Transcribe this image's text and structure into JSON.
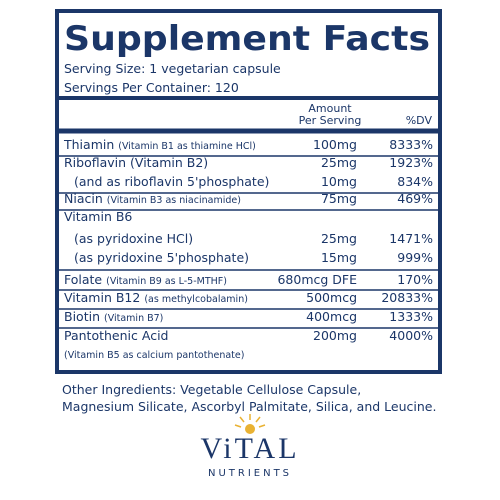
{
  "header": {
    "title": "Supplement Facts",
    "serving_size": "Serving Size: 1 vegetarian capsule",
    "servings_per_container": "Servings Per Container: 120"
  },
  "table": {
    "columns": {
      "amount": "Amount Per Serving",
      "dv": "%DV"
    },
    "rows": [
      {
        "name": "Thiamin",
        "note": "(Vitamin B1 as thiamine HCl)",
        "amount": "100mg",
        "dv": "8333%"
      },
      {
        "name": "Riboflavin (Vitamin B2)",
        "amount": "25mg",
        "dv": "1923%"
      },
      {
        "name": "(and as riboflavin 5'phosphate)",
        "amount": "10mg",
        "dv": "834%"
      },
      {
        "name": "Niacin",
        "note": "(Vitamin B3 as niacinamide)",
        "amount": "75mg",
        "dv": "469%"
      },
      {
        "name": "Vitamin B6"
      },
      {
        "name": "(as pyridoxine HCl)",
        "amount": "25mg",
        "dv": "1471%"
      },
      {
        "name": "(as pyridoxine 5'phosphate)",
        "amount": "15mg",
        "dv": "999%"
      },
      {
        "name": "Folate",
        "note": "(Vitamin B9 as L-5-MTHF)",
        "amount": "680mcg DFE",
        "dv": "170%"
      },
      {
        "name": "Vitamin B12",
        "note": "(as methylcobalamin)",
        "amount": "500mcg",
        "dv": "20833%"
      },
      {
        "name": "Biotin",
        "note": "(Vitamin B7)",
        "amount": "400mcg",
        "dv": "1333%"
      },
      {
        "name": "Pantothenic Acid",
        "amount": "200mg",
        "dv": "4000%"
      },
      {
        "name": "(Vitamin B5 as calcium pantothenate)"
      }
    ]
  },
  "other_ingredients": [
    "Other Ingredients: Vegetable Cellulose Capsule,",
    "Magnesium Silicate, Ascorbyl Palmitate, Silica, and Leucine."
  ],
  "logo": {
    "brand": "ViTAL",
    "tagline": "NUTRIENTS"
  }
}
